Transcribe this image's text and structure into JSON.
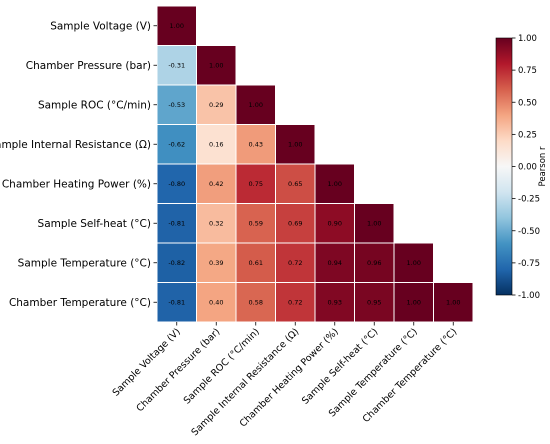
{
  "chart_data": {
    "type": "heatmap",
    "subtype": "lower-triangle correlation matrix",
    "labels": [
      "Sample Voltage (V)",
      "Chamber Pressure (bar)",
      "Sample ROC (°C/min)",
      "Sample Internal Resistance (Ω)",
      "Chamber Heating Power (%)",
      "Sample Self-heat (°C)",
      "Sample Temperature (°C)",
      "Chamber Temperature (°C)"
    ],
    "matrix": [
      [
        1.0
      ],
      [
        -0.31,
        1.0
      ],
      [
        -0.53,
        0.29,
        1.0
      ],
      [
        -0.62,
        0.16,
        0.43,
        1.0
      ],
      [
        -0.8,
        0.42,
        0.75,
        0.65,
        1.0
      ],
      [
        -0.81,
        0.32,
        0.59,
        0.69,
        0.9,
        1.0
      ],
      [
        -0.82,
        0.39,
        0.61,
        0.72,
        0.94,
        0.96,
        1.0
      ],
      [
        -0.81,
        0.4,
        0.58,
        0.72,
        0.93,
        0.95,
        1.0,
        1.0
      ]
    ],
    "value_format": "2 decimals",
    "colorbar": {
      "label": "Pearson r",
      "range": [
        -1,
        1
      ],
      "ticks": [
        "-1.00",
        "-0.75",
        "-0.50",
        "-0.25",
        "0.00",
        "0.25",
        "0.50",
        "0.75",
        "1.00"
      ],
      "colormap": "RdBu_r",
      "colors": {
        "neg_1": "#053061",
        "neg_0_8": "#2166ac",
        "neg_0_6": "#4393c3",
        "neg_0_4": "#92c5de",
        "neg_0_2": "#d1e5f0",
        "zero": "#f7f7f7",
        "pos_0_2": "#fddbc7",
        "pos_0_4": "#f4a582",
        "pos_0_6": "#d6604d",
        "pos_0_8": "#b2182b",
        "pos_1": "#67001f"
      }
    }
  }
}
